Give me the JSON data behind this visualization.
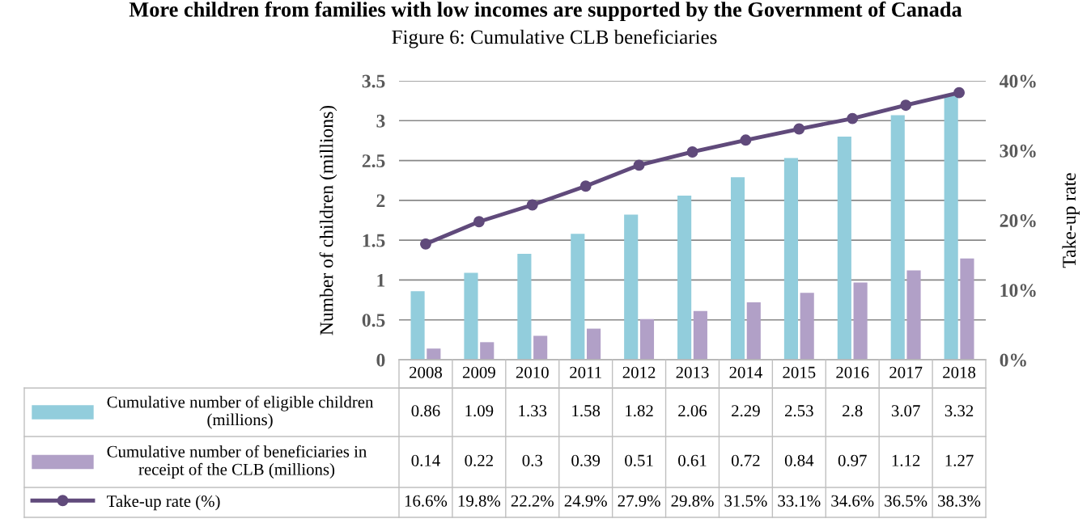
{
  "chart_data": {
    "type": "bar",
    "title": "More children from families with low incomes are supported by the Government of Canada",
    "subtitle": "Figure 6: Cumulative CLB beneficiaries",
    "ylabel": "Number of children (millions)",
    "y2label": "Take-up rate",
    "categories": [
      "2008",
      "2009",
      "2010",
      "2011",
      "2012",
      "2013",
      "2014",
      "2015",
      "2016",
      "2017",
      "2018"
    ],
    "series": [
      {
        "name": "Cumulative number of eligible children (millions)",
        "color": "#92cddc",
        "values": [
          0.86,
          1.09,
          1.33,
          1.58,
          1.82,
          2.06,
          2.29,
          2.53,
          2.8,
          3.07,
          3.32
        ]
      },
      {
        "name": "Cumulative number of beneficiaries in receipt of the CLB (millions)",
        "color": "#b1a0c7",
        "values": [
          0.14,
          0.22,
          0.3,
          0.39,
          0.51,
          0.61,
          0.72,
          0.84,
          0.97,
          1.12,
          1.27
        ]
      },
      {
        "name": "Take-up rate (%)",
        "type": "line",
        "axis": "y2",
        "color": "#604a7b",
        "marker": "circle",
        "values": [
          16.6,
          19.8,
          22.2,
          24.9,
          27.9,
          29.8,
          31.5,
          33.1,
          34.6,
          36.5,
          38.3
        ],
        "value_labels": [
          "16.6%",
          "19.8%",
          "22.2%",
          "24.9%",
          "27.9%",
          "29.8%",
          "31.5%",
          "33.1%",
          "34.6%",
          "36.5%",
          "38.3%"
        ]
      }
    ],
    "ylim": [
      0,
      3.5
    ],
    "yticks": [
      0,
      0.5,
      1,
      1.5,
      2,
      2.5,
      3,
      3.5
    ],
    "y2lim": [
      0,
      40
    ],
    "y2ticks": [
      {
        "value": 0,
        "label": "0%"
      },
      {
        "value": 10,
        "label": "10%"
      },
      {
        "value": 20,
        "label": "20%"
      },
      {
        "value": 30,
        "label": "30%"
      },
      {
        "value": 40,
        "label": "40%"
      }
    ],
    "grid": "y",
    "legend": "bottom",
    "data_labels": true
  }
}
